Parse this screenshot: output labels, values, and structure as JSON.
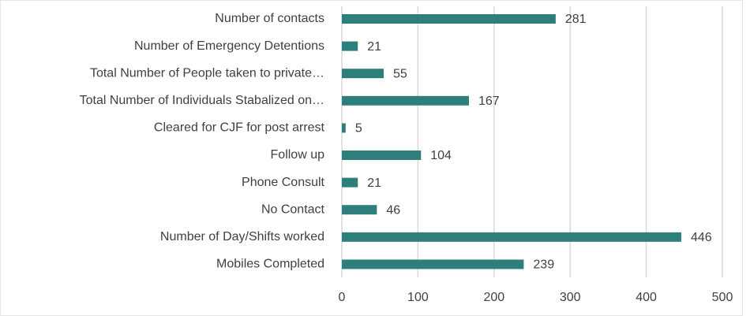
{
  "chart_data": {
    "type": "bar",
    "orientation": "horizontal",
    "categories": [
      "Number of contacts",
      "Number of Emergency Detentions",
      "Total Number of People taken to private…",
      "Total Number of Individuals Stabalized on…",
      "Cleared for CJF for post arrest",
      "Follow up",
      "Phone Consult",
      "No Contact",
      "Number of Day/Shifts worked",
      "Mobiles Completed"
    ],
    "values": [
      281,
      21,
      55,
      167,
      5,
      104,
      21,
      46,
      446,
      239
    ],
    "color": "#2e7f7b",
    "xlim": [
      0,
      500
    ],
    "xticks": [
      0,
      100,
      200,
      300,
      400,
      500
    ],
    "grid": true
  }
}
